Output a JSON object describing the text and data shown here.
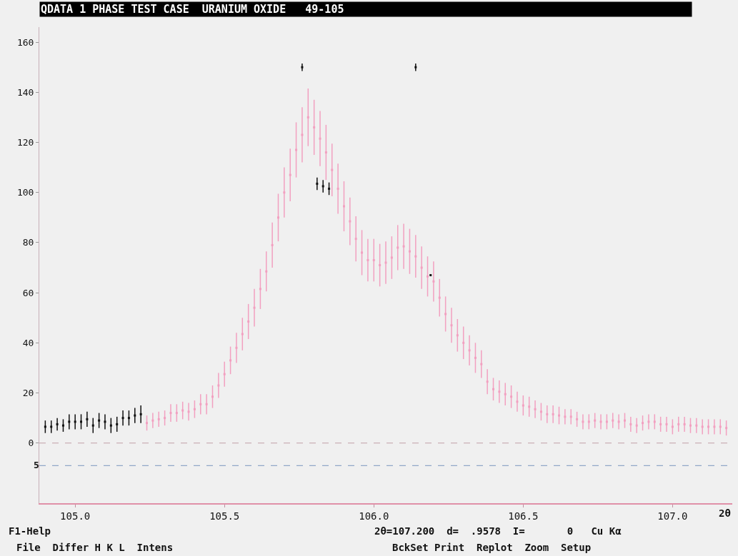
{
  "chart_data": {
    "type": "scatter",
    "title": "QDATA 1 PHASE TEST CASE  URANIUM OXIDE   49-105",
    "xlabel": "2θ",
    "xlim": [
      104.88,
      107.2
    ],
    "xticks": [
      {
        "value": 105.0,
        "label": "105.0"
      },
      {
        "value": 105.5,
        "label": "105.5"
      },
      {
        "value": 106.0,
        "label": "106.0"
      },
      {
        "value": 106.5,
        "label": "106.5"
      },
      {
        "value": 107.0,
        "label": "107.0"
      }
    ],
    "ylim": [
      -24,
      166
    ],
    "yticks": [
      0,
      20,
      40,
      60,
      80,
      100,
      120,
      140,
      160
    ],
    "grid": false,
    "marker": "square",
    "series": [
      {
        "color": "#f2a0c0",
        "x": [
          105.24,
          105.26,
          105.28,
          105.3,
          105.32,
          105.34,
          105.36,
          105.38,
          105.4,
          105.42,
          105.44,
          105.46,
          105.48,
          105.5,
          105.52,
          105.54,
          105.56,
          105.58,
          105.6,
          105.62,
          105.64,
          105.66,
          105.68,
          105.7,
          105.72,
          105.74,
          105.76,
          105.78,
          105.8,
          105.82,
          105.84,
          105.86,
          105.88,
          105.9,
          105.92,
          105.94,
          105.96,
          105.98,
          106.0,
          106.02,
          106.04,
          106.06,
          106.08,
          106.1,
          106.12,
          106.14,
          106.16,
          106.18,
          106.2,
          106.22,
          106.24,
          106.26,
          106.28,
          106.3,
          106.32,
          106.34,
          106.36,
          106.38,
          106.4,
          106.42,
          106.44,
          106.46,
          106.48,
          106.5,
          106.52,
          106.54,
          106.56,
          106.58,
          106.6,
          106.62,
          106.64,
          106.66,
          106.68,
          106.7,
          106.72,
          106.74,
          106.76,
          106.78,
          106.8,
          106.82,
          106.84,
          106.86,
          106.88,
          106.9,
          106.92,
          106.94,
          106.96,
          106.98,
          107.0,
          107.02,
          107.04,
          107.06,
          107.08,
          107.1,
          107.12,
          107.14,
          107.16,
          107.18
        ],
        "values": [
          8,
          9,
          9.5,
          10,
          12,
          12,
          13,
          12.5,
          13.5,
          15.5,
          15.5,
          18.5,
          23,
          27.5,
          33,
          38,
          43.5,
          48.5,
          54,
          61.5,
          68.5,
          79,
          90,
          100,
          107,
          117,
          123,
          130,
          126,
          121.5,
          116,
          109,
          101.5,
          94.5,
          88.5,
          81.5,
          76,
          73,
          73,
          71,
          72,
          74,
          78,
          78.5,
          76.5,
          74.5,
          70,
          66.5,
          64.5,
          58,
          51.5,
          47,
          43,
          40,
          37,
          34,
          31.5,
          24.5,
          21.5,
          20.5,
          19.5,
          18.5,
          16.5,
          15,
          14.5,
          13.5,
          12.5,
          11.5,
          11.5,
          11,
          10.5,
          10.5,
          9.5,
          8.5,
          8.5,
          9,
          8.5,
          8.5,
          9,
          8.5,
          9,
          7.5,
          7,
          8,
          8.5,
          8.5,
          7.5,
          7.5,
          6.5,
          7.5,
          7.5,
          7,
          7,
          6.5,
          6.5,
          6.5,
          6.5,
          6
        ],
        "errors": [
          3,
          3,
          3,
          3,
          3.5,
          3.5,
          3.5,
          3.5,
          3.5,
          4,
          4,
          4.5,
          5,
          5,
          5.5,
          6,
          6.5,
          7,
          7.5,
          8,
          8,
          9,
          9.5,
          10,
          10.5,
          11,
          11,
          11.5,
          11,
          11,
          11,
          10.5,
          10,
          10,
          9.5,
          9,
          9,
          8.5,
          8.5,
          8.5,
          8.5,
          8.5,
          9,
          9,
          9,
          8.5,
          8.5,
          8,
          8,
          7.5,
          7,
          7,
          6.5,
          6.5,
          6,
          6,
          5.5,
          5,
          4.5,
          4.5,
          4.5,
          4.5,
          4,
          4,
          4,
          3.5,
          3.5,
          3.5,
          3.5,
          3.5,
          3,
          3,
          3,
          3,
          3,
          3,
          3,
          3,
          3,
          3,
          3,
          3,
          3,
          3,
          3,
          3,
          3,
          3,
          3,
          3,
          3,
          3,
          3,
          3,
          3,
          3,
          3,
          3
        ]
      },
      {
        "color": "#101010",
        "x": [
          104.9,
          104.92,
          104.94,
          104.96,
          104.98,
          105.0,
          105.02,
          105.04,
          105.06,
          105.08,
          105.1,
          105.12,
          105.14,
          105.16,
          105.18,
          105.2,
          105.22,
          105.81,
          105.83,
          105.85,
          106.19,
          105.76,
          106.14
        ],
        "values": [
          6.5,
          6.5,
          7.5,
          7,
          8.5,
          8.5,
          8.5,
          9.5,
          7,
          9,
          8.5,
          7,
          7.5,
          10,
          10,
          11,
          11.5,
          103.5,
          102.5,
          101.5,
          67,
          150,
          150
        ],
        "errors": [
          2.5,
          2.5,
          2.5,
          2.5,
          3,
          3,
          3,
          3,
          3,
          3,
          3,
          3,
          3,
          3,
          3,
          3,
          3.5,
          2.5,
          2.5,
          2.5,
          null,
          1.5,
          1.5
        ]
      }
    ],
    "ref_lines": [
      {
        "axis": "y",
        "value": 0,
        "color": "#c0a0a8",
        "line_style": "dashed"
      },
      {
        "axis": "y",
        "value": -9,
        "color": "#90a8c8",
        "line_style": "dashed"
      }
    ],
    "annotations": [
      "F1-Help",
      "2θ=107.200  d=  .9578  I=       0   Cu Kα",
      "File  Differ H K L  Intens",
      "BckSet Print  Replot  Zoom  Setup",
      "5"
    ]
  }
}
